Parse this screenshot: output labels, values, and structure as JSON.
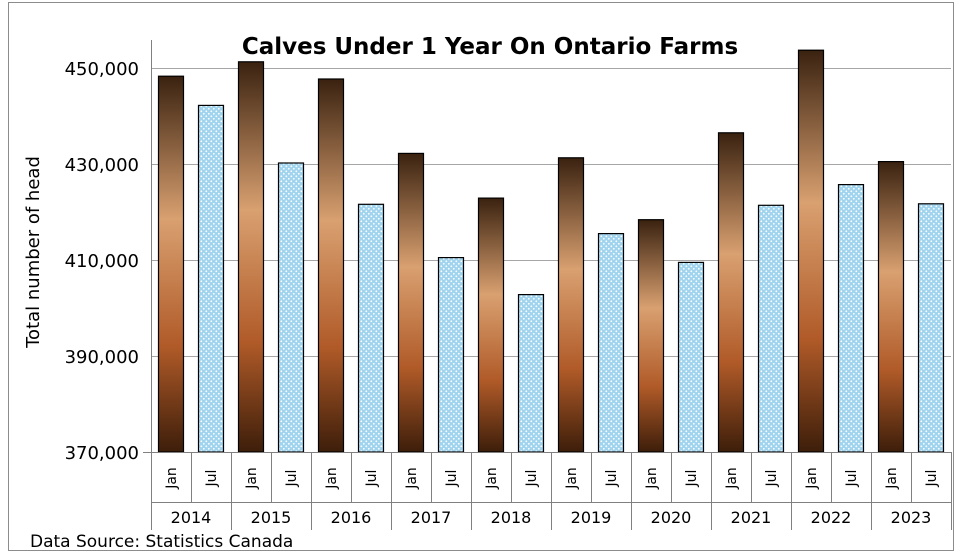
{
  "chart_data": {
    "type": "bar",
    "title": "Calves Under 1 Year On Ontario Farms",
    "ylabel": "Total number of head",
    "ylim": [
      370000,
      455000
    ],
    "yticks": [
      "370,000",
      "390,000",
      "410,000",
      "430,000",
      "450,000"
    ],
    "ytick_values": [
      370000,
      390000,
      410000,
      430000,
      450000
    ],
    "grid": "horizontal",
    "years": [
      "2014",
      "2015",
      "2016",
      "2017",
      "2018",
      "2019",
      "2020",
      "2021",
      "2022",
      "2023"
    ],
    "months": [
      "Jan",
      "Jul"
    ],
    "categories": [
      "Jan 2014",
      "Jul 2014",
      "Jan 2015",
      "Jul 2015",
      "Jan 2016",
      "Jul 2016",
      "Jan 2017",
      "Jul 2017",
      "Jan 2018",
      "Jul 2018",
      "Jan 2019",
      "Jul 2019",
      "Jan 2020",
      "Jul 2020",
      "Jan 2021",
      "Jul 2021",
      "Jan 2022",
      "Jul 2022",
      "Jan 2023",
      "Jul 2023"
    ],
    "values": [
      448300,
      442200,
      451300,
      430200,
      447700,
      421600,
      432200,
      410500,
      422900,
      402800,
      431300,
      415500,
      418400,
      409500,
      436500,
      421400,
      453700,
      425700,
      430500,
      421700
    ],
    "colors": {
      "jan_dark": "#3a2210",
      "jan_mid": "#d9a070",
      "jan_low": "#b05a28",
      "jul_fill": "#9fd3ee",
      "jul_dot": "#ffffff",
      "bar_edge": "#000000",
      "grid": "#a6a6a6"
    }
  },
  "footer": {
    "source": "Data Source: Statistics Canada"
  }
}
